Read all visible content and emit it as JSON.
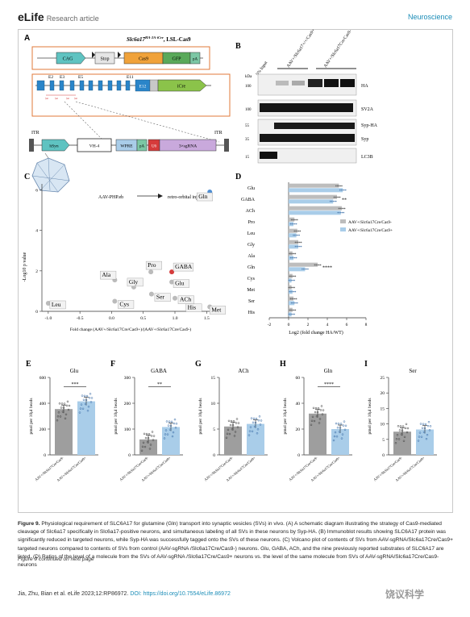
{
  "header": {
    "logo": "eLife",
    "article_type": "Research article",
    "section": "Neuroscience"
  },
  "panel_a": {
    "letter": "A",
    "title": "Slc6a17",
    "title_sup": "HA-2A-iCre",
    "title_suffix": ", LSL-Cas9",
    "cassette": [
      "CAG",
      "Stop",
      "Cas9",
      "GFP",
      "pA"
    ],
    "exons": [
      "E2",
      "E3",
      "E5",
      "E11",
      "E12"
    ],
    "icre": "iCre",
    "itr_left": "ITR",
    "itr_right": "ITR",
    "aav_elements": [
      "hSyn",
      "VH-4",
      "WPRE",
      "pA",
      "U6",
      "3×sgRNA"
    ],
    "virus": "AAV-PHP.eb",
    "injection": "retro-orbital injection"
  },
  "panel_b": {
    "letter": "B",
    "lane_labels": [
      "5% Input",
      "AAV+/Slc6a17+/+/Cas9+",
      "AAV+/Slc6a17Cre/Cas9-"
    ],
    "kda_label": "kDa",
    "rows": [
      {
        "marker": "100",
        "label": "HA"
      },
      {
        "marker": "100",
        "label": "SV2A"
      },
      {
        "marker": "55",
        "label": "Syp-HA"
      },
      {
        "marker": "35",
        "label": "Syp"
      },
      {
        "marker": "15",
        "label": "LC3B"
      }
    ]
  },
  "chart_data": [
    {
      "panel": "C",
      "type": "scatter",
      "xlabel": "Fold change (AAV+/Slc6a17Cre/Cas9+)/(AAV+/Slc6a17Cre/Cas9-)",
      "ylabel": "-Log10 p value",
      "xlim": [
        -1.1,
        1.7
      ],
      "ylim": [
        0,
        6.3
      ],
      "xticks": [
        "-1.0",
        "-0.5",
        "0.0",
        "0.5",
        "1.0",
        "1.5"
      ],
      "yticks": [
        "0",
        "2",
        "4",
        "6"
      ],
      "points": [
        {
          "label": "Gln",
          "x": 1.55,
          "y": 5.9,
          "color": "#4f8fd4"
        },
        {
          "label": "GABA",
          "x": 0.95,
          "y": 1.95,
          "color": "#d63b3b"
        },
        {
          "label": "Glu",
          "x": 0.95,
          "y": 1.45,
          "color": "#bbbbbb"
        },
        {
          "label": "ACh",
          "x": 1.0,
          "y": 0.65,
          "color": "#bbbbbb"
        },
        {
          "label": "His",
          "x": 1.3,
          "y": 0.25,
          "color": "#bbbbbb"
        },
        {
          "label": "Met",
          "x": 1.55,
          "y": 0.22,
          "color": "#bbbbbb"
        },
        {
          "label": "Pro",
          "x": 0.62,
          "y": 1.95,
          "color": "#bbbbbb"
        },
        {
          "label": "Ser",
          "x": 0.63,
          "y": 0.85,
          "color": "#bbbbbb"
        },
        {
          "label": "Gly",
          "x": 0.35,
          "y": 1.2,
          "color": "#bbbbbb"
        },
        {
          "label": "Ala",
          "x": 0.05,
          "y": 1.55,
          "color": "#bbbbbb"
        },
        {
          "label": "Cys",
          "x": 0.05,
          "y": 0.5,
          "color": "#bbbbbb"
        },
        {
          "label": "Leu",
          "x": -1.0,
          "y": 0.4,
          "color": "#bbbbbb"
        }
      ]
    },
    {
      "panel": "D",
      "type": "bar",
      "orientation": "horizontal",
      "xlabel": "Log2 (fold change HA/WT)",
      "xlim": [
        -2,
        8
      ],
      "xticks": [
        "-2",
        "0",
        "2",
        "4",
        "6",
        "8"
      ],
      "series": [
        {
          "name": "AAV+/Slc6a17Cre/Cas9-",
          "color": "#bdbdbd"
        },
        {
          "name": "AAV+/Slc6a17Cre/Cas9+",
          "color": "#a9cde9"
        }
      ],
      "categories": [
        "Glu",
        "GABA",
        "ACh",
        "Pro",
        "Leu",
        "Gly",
        "Ala",
        "Gln",
        "Cys",
        "Met",
        "Ser",
        "His"
      ],
      "values_cas9_minus": [
        5.2,
        5.0,
        5.5,
        0.6,
        0.9,
        1.0,
        0.4,
        3.0,
        0.4,
        0.3,
        0.5,
        0.4
      ],
      "values_cas9_plus": [
        5.6,
        4.6,
        5.4,
        0.5,
        0.8,
        1.0,
        0.5,
        1.7,
        0.3,
        0.4,
        0.6,
        0.3
      ],
      "significance": {
        "GABA": "**",
        "Gln": "****"
      }
    },
    {
      "panel": "E",
      "type": "bar",
      "title": "Glu",
      "ylabel": "pmol per 10μl beads",
      "ylim": [
        0,
        600
      ],
      "yticks": [
        "0",
        "200",
        "400",
        "600"
      ],
      "categories": [
        "AAV+/Slc6a17Cre/Cas9-",
        "AAV+/Slc6a17Cre/Cas9+"
      ],
      "values": [
        355,
        415
      ],
      "colors": [
        "#9e9e9e",
        "#a9cde9"
      ],
      "significance": "***"
    },
    {
      "panel": "F",
      "type": "bar",
      "title": "GABA",
      "ylabel": "pmol per 10μl beads",
      "ylim": [
        0,
        300
      ],
      "yticks": [
        "0",
        "100",
        "200",
        "300"
      ],
      "categories": [
        "AAV+/Slc6a17Cre/Cas9-",
        "AAV+/Slc6a17Cre/Cas9+"
      ],
      "values": [
        60,
        108
      ],
      "colors": [
        "#9e9e9e",
        "#a9cde9"
      ],
      "significance": "**"
    },
    {
      "panel": "G",
      "type": "bar",
      "title": "ACh",
      "ylabel": "pmol per 10μl beads",
      "ylim": [
        0,
        15
      ],
      "yticks": [
        "0",
        "5",
        "10",
        "15"
      ],
      "categories": [
        "AAV+/Slc6a17Cre/Cas9-",
        "AAV+/Slc6a17Cre/Cas9+"
      ],
      "values": [
        5.5,
        6.0
      ],
      "colors": [
        "#9e9e9e",
        "#a9cde9"
      ],
      "significance": ""
    },
    {
      "panel": "H",
      "type": "bar",
      "title": "Gln",
      "ylabel": "pmol per 10μl beads",
      "ylim": [
        0,
        60
      ],
      "yticks": [
        "0",
        "20",
        "40",
        "60"
      ],
      "categories": [
        "AAV+/Slc6a17Cre/Cas9-",
        "AAV+/Slc6a17Cre/Cas9+"
      ],
      "values": [
        32,
        20
      ],
      "colors": [
        "#9e9e9e",
        "#a9cde9"
      ],
      "significance": "****"
    },
    {
      "panel": "I",
      "type": "bar",
      "title": "Ser",
      "ylabel": "pmol per 10μl beads",
      "ylim": [
        0,
        25
      ],
      "yticks": [
        "0",
        "5",
        "10",
        "15",
        "20",
        "25"
      ],
      "categories": [
        "AAV+/Slc6a17Cre/Cas9-",
        "AAV+/Slc6a17Cre/Cas9+"
      ],
      "values": [
        7.5,
        8.2
      ],
      "colors": [
        "#9e9e9e",
        "#a9cde9"
      ],
      "significance": ""
    }
  ],
  "caption": {
    "label": "Figure 9.",
    "text": "Physiological requirement of SLC6A17 for glutamine (Gln) transport into synaptic vesicles (SVs) in vivo. (A) A schematic diagram illustrating the strategy of Cas9-mediated cleavage of Slc6a17 specifically in Slc6a17-positive neurons, and simultaneous labeling of all SVs in these neurons by Syp-HA. (B) Immunoblot results showing SLC6A17 protein was significantly reduced in targeted neurons, while Syp-HA was successfully tagged onto the SVs of these neurons. (C) Volcano plot of contents of SVs from AAV-sgRNA/Slc6a17Cre/Cas9+ targeted neurons compared to contents of SVs from control (AAV-sgRNA /Slc6a17Cre/Cas9-) neurons. Glu, GABA, ACh, and the nine previously reported substrates of SLC6A17 are listed. (D) Ratios of the level of a molecule from the SVs of AAV-sgRNA /Slc6a17Cre/Cas9+ neurons vs. the level of the same molecule from SVs of AAV-sgRNA/Slc6a17Cre/Cas9- neurons",
    "continued": "Figure 9 continued on next page"
  },
  "footer": {
    "citation": "Jia, Zhu, Bian et al. eLife 2023;12:RP86972.",
    "doi": "DOI: https://doi.org/10.7554/eLife.86972",
    "page": "25 of 33",
    "watermark": "饶议科学"
  }
}
